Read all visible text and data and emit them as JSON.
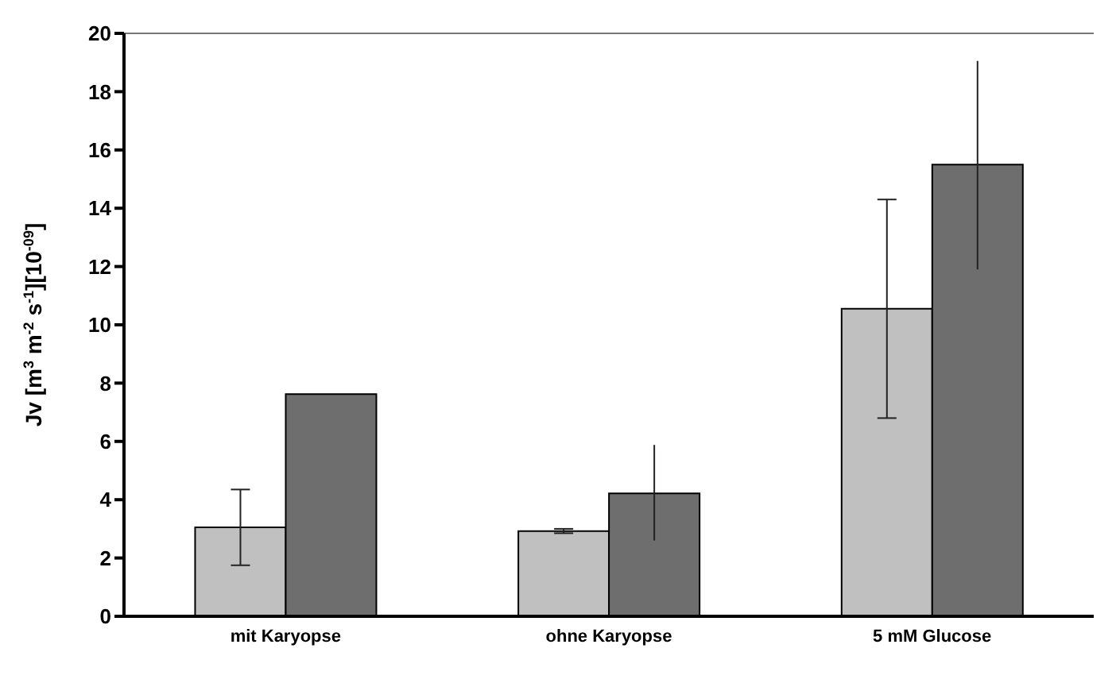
{
  "chart_data": {
    "type": "bar",
    "ylabel": "Jv [m$^{3}$ m$^{-2}$ s$^{-1}$][10$^{-09}$]",
    "categories": [
      "mit Karyopse",
      "ohne Karyopse",
      "5 mM Glucose"
    ],
    "series": [
      {
        "color": "#c0c0c0",
        "values": [
          3.05,
          2.92,
          10.55
        ],
        "errors": [
          [
            1.75,
            4.35
          ],
          [
            2.85,
            3.0
          ],
          [
            6.8,
            14.3
          ]
        ]
      },
      {
        "color": "#6e6e6e",
        "values": [
          7.62,
          4.22,
          15.5
        ],
        "errors": [
          null,
          [
            2.6,
            5.88
          ],
          [
            11.9,
            19.05
          ]
        ]
      }
    ],
    "ylim": [
      0,
      20
    ],
    "yticks": [
      0,
      2,
      4,
      6,
      8,
      10,
      12,
      14,
      16,
      18,
      20
    ],
    "grid": false,
    "legend": false
  }
}
